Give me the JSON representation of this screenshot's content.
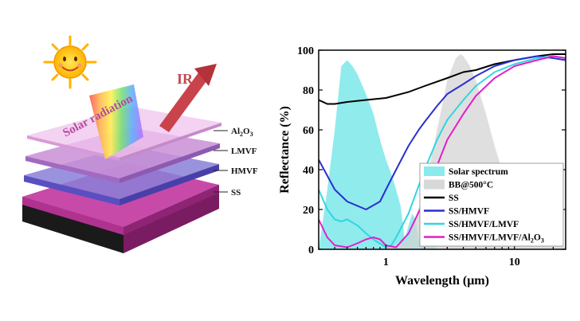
{
  "diagram": {
    "sun_label": "",
    "solar_radiation_label": "Solar radiation",
    "ir_label": "IR",
    "layers": [
      {
        "label": "Al2O3",
        "color": "#e9b7ea"
      },
      {
        "label": "LMVF",
        "color": "#c98fd6"
      },
      {
        "label": "HMVF",
        "color": "#8a7fd8"
      },
      {
        "label": "SS",
        "color": "#b0328f"
      }
    ]
  },
  "chart_data": {
    "type": "line",
    "xlabel": "Wavelength (μm)",
    "ylabel": "Reflectance (%)",
    "xscale": "log",
    "xlim": [
      0.3,
      25
    ],
    "ylim": [
      0,
      100
    ],
    "xticks": [
      1,
      10
    ],
    "yticks": [
      0,
      20,
      40,
      60,
      80,
      100
    ],
    "legend_position": "bottom-right",
    "shaded": [
      {
        "name": "Solar spectrum",
        "color": "#7de8ea",
        "x": [
          0.3,
          0.35,
          0.4,
          0.45,
          0.5,
          0.55,
          0.6,
          0.7,
          0.8,
          0.9,
          1.0,
          1.1,
          1.2,
          1.3,
          1.4,
          1.5,
          1.6,
          1.7,
          1.8,
          1.9,
          2.0,
          2.1,
          2.3,
          2.5
        ],
        "y": [
          0,
          30,
          60,
          92,
          95,
          92,
          88,
          78,
          68,
          55,
          45,
          38,
          30,
          22,
          5,
          12,
          18,
          15,
          5,
          2,
          6,
          8,
          5,
          0
        ]
      },
      {
        "name": "BB@500°C",
        "color": "#d4d4d4",
        "x": [
          1.0,
          1.5,
          2.0,
          2.5,
          3.0,
          3.5,
          3.8,
          4.0,
          4.5,
          5.0,
          6.0,
          7.0,
          8.0,
          10.0,
          12.0,
          15.0,
          20.0,
          25.0
        ],
        "y": [
          0,
          5,
          30,
          60,
          85,
          96,
          98,
          97,
          92,
          85,
          68,
          52,
          40,
          24,
          15,
          8,
          3,
          1
        ]
      }
    ],
    "series": [
      {
        "name": "SS",
        "color": "#000000",
        "x": [
          0.3,
          0.35,
          0.4,
          0.5,
          0.7,
          1.0,
          1.5,
          2.0,
          3.0,
          4.0,
          5.0,
          7.0,
          10.0,
          15.0,
          20.0,
          25.0
        ],
        "y": [
          75,
          73,
          73,
          74,
          75,
          76,
          79,
          82,
          86,
          89,
          90,
          93,
          95,
          97,
          98,
          98
        ]
      },
      {
        "name": "SS/HMVF",
        "color": "#2a2fd0",
        "x": [
          0.3,
          0.4,
          0.5,
          0.7,
          0.9,
          1.0,
          1.2,
          1.5,
          1.8,
          2.0,
          2.5,
          3.0,
          4.0,
          5.0,
          7.0,
          10.0,
          15.0,
          20.0,
          25.0
        ],
        "y": [
          45,
          30,
          24,
          20,
          24,
          30,
          40,
          52,
          60,
          64,
          72,
          78,
          83,
          87,
          92,
          95,
          97,
          96,
          95
        ]
      },
      {
        "name": "SS/HMVF/LMVF",
        "color": "#30d6e0",
        "x": [
          0.3,
          0.35,
          0.4,
          0.45,
          0.5,
          0.6,
          0.7,
          0.8,
          1.0,
          1.1,
          1.2,
          1.5,
          2.0,
          2.5,
          3.0,
          4.0,
          5.0,
          7.0,
          10.0,
          15.0,
          20.0,
          25.0
        ],
        "y": [
          30,
          20,
          15,
          14,
          15,
          12,
          8,
          5,
          1,
          2,
          6,
          18,
          40,
          55,
          65,
          75,
          82,
          89,
          93,
          96,
          97,
          96
        ]
      },
      {
        "name": "SS/HMVF/LMVF/Al2O3",
        "color": "#e020c8",
        "x": [
          0.3,
          0.35,
          0.4,
          0.5,
          0.6,
          0.7,
          0.8,
          0.9,
          1.0,
          1.2,
          1.5,
          2.0,
          2.5,
          3.0,
          4.0,
          5.0,
          7.0,
          10.0,
          15.0,
          20.0,
          25.0
        ],
        "y": [
          15,
          6,
          2,
          1,
          3,
          5,
          6,
          5,
          2,
          1,
          8,
          25,
          42,
          55,
          68,
          77,
          86,
          92,
          95,
          97,
          96
        ]
      }
    ]
  }
}
